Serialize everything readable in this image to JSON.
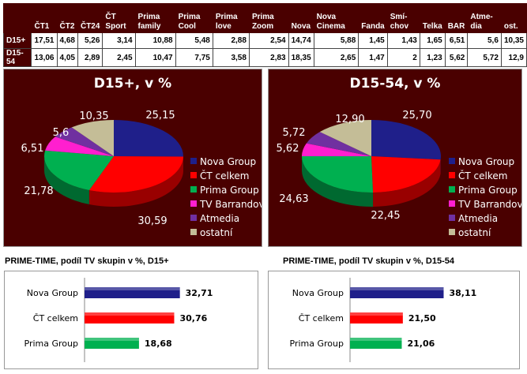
{
  "table": {
    "headers": [
      "",
      "ČT1",
      "ČT2",
      "ČT24",
      "ČT Sport",
      "Prima family",
      "Prima Cool",
      "Prima love",
      "Prima Zoom",
      "Nova",
      "Nova Cinema",
      "Fanda",
      "Smí-chov",
      "Telka",
      "BAR",
      "Atme-dia",
      "ost."
    ],
    "rows": [
      [
        "D15+",
        "17,51",
        "4,68",
        "5,26",
        "3,14",
        "10,88",
        "5,48",
        "2,88",
        "2,54",
        "14,74",
        "5,88",
        "1,45",
        "1,43",
        "1,65",
        "6,51",
        "5,6",
        "10,35"
      ],
      [
        "D15-54",
        "13,06",
        "4,05",
        "2,89",
        "2,45",
        "10,47",
        "7,75",
        "3,58",
        "2,83",
        "18,35",
        "2,65",
        "1,47",
        "2",
        "1,23",
        "5,62",
        "5,72",
        "12,9"
      ]
    ]
  },
  "chart_data": [
    {
      "type": "pie",
      "title": "D15+, v %",
      "categories": [
        "Nova Group",
        "ČT celkem",
        "Prima Group",
        "TV Barrandov",
        "Atmedia",
        "ostatní"
      ],
      "values": [
        25.15,
        30.59,
        21.78,
        6.51,
        5.6,
        10.35
      ],
      "labels": [
        "25,15",
        "30,59",
        "21,78",
        "6,51",
        "5,6",
        "10,35"
      ],
      "colors": [
        "#1f1f8a",
        "#ff0000",
        "#00b050",
        "#ff1fcf",
        "#7030a0",
        "#c4bd97"
      ],
      "legend": "right"
    },
    {
      "type": "pie",
      "title": "D15-54, v %",
      "categories": [
        "Nova Group",
        "ČT celkem",
        "Prima Group",
        "TV Barrandov",
        "Atmedia",
        "ostatní"
      ],
      "values": [
        25.7,
        22.45,
        24.63,
        5.62,
        5.72,
        12.9
      ],
      "labels": [
        "25,70",
        "22,45",
        "24,63",
        "5,62",
        "5,72",
        "12,90"
      ],
      "colors": [
        "#1f1f8a",
        "#ff0000",
        "#00b050",
        "#ff1fcf",
        "#7030a0",
        "#c4bd97"
      ],
      "legend": "right"
    },
    {
      "type": "bar",
      "title": "PRIME-TIME, podíl TV skupin v %, D15+",
      "categories": [
        "Nova Group",
        "ČT celkem",
        "Prima Group"
      ],
      "values": [
        32.71,
        30.76,
        18.68
      ],
      "labels": [
        "32,71",
        "30,76",
        "18,68"
      ],
      "colors": [
        "#1f1f8a",
        "#ff0000",
        "#00b050"
      ],
      "xlim": [
        0,
        45
      ]
    },
    {
      "type": "bar",
      "title": "PRIME-TIME, podíl TV skupin v %, D15-54",
      "categories": [
        "Nova Group",
        "ČT celkem",
        "Prima Group"
      ],
      "values": [
        38.11,
        21.5,
        21.06
      ],
      "labels": [
        "38,11",
        "21,50",
        "21,06"
      ],
      "colors": [
        "#1f1f8a",
        "#ff0000",
        "#00b050"
      ],
      "xlim": [
        0,
        55
      ]
    }
  ]
}
